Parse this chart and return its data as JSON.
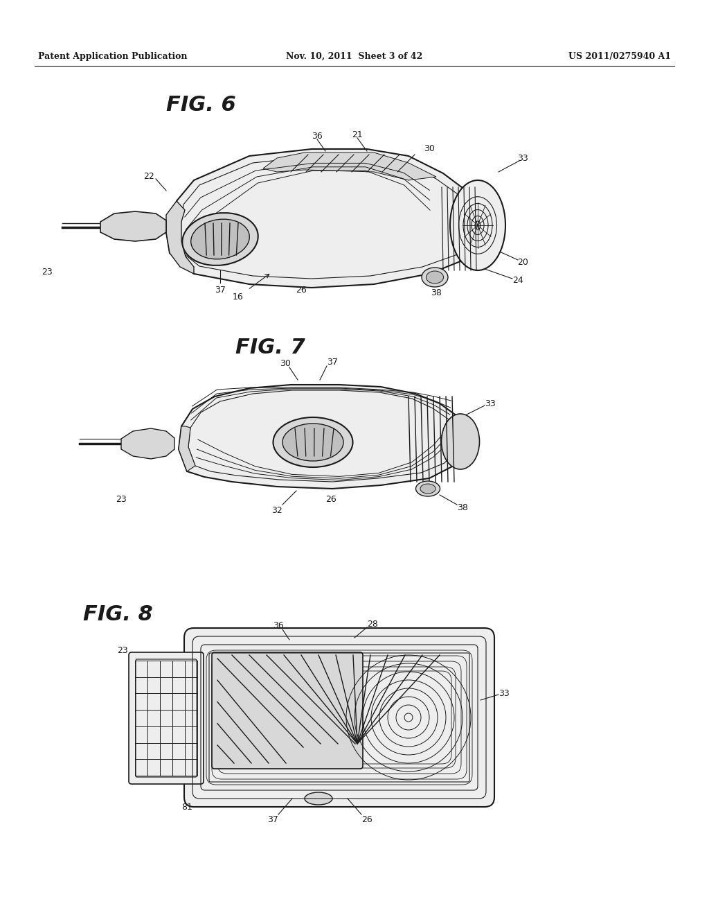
{
  "bg_color": "#ffffff",
  "header_left": "Patent Application Publication",
  "header_center": "Nov. 10, 2011  Sheet 3 of 42",
  "header_right": "US 2011/0275940 A1",
  "text_color": "#1a1a1a",
  "line_color": "#1a1a1a",
  "fill_light": "#eeeeee",
  "fill_mid": "#d8d8d8",
  "fill_dark": "#c0c0c0"
}
